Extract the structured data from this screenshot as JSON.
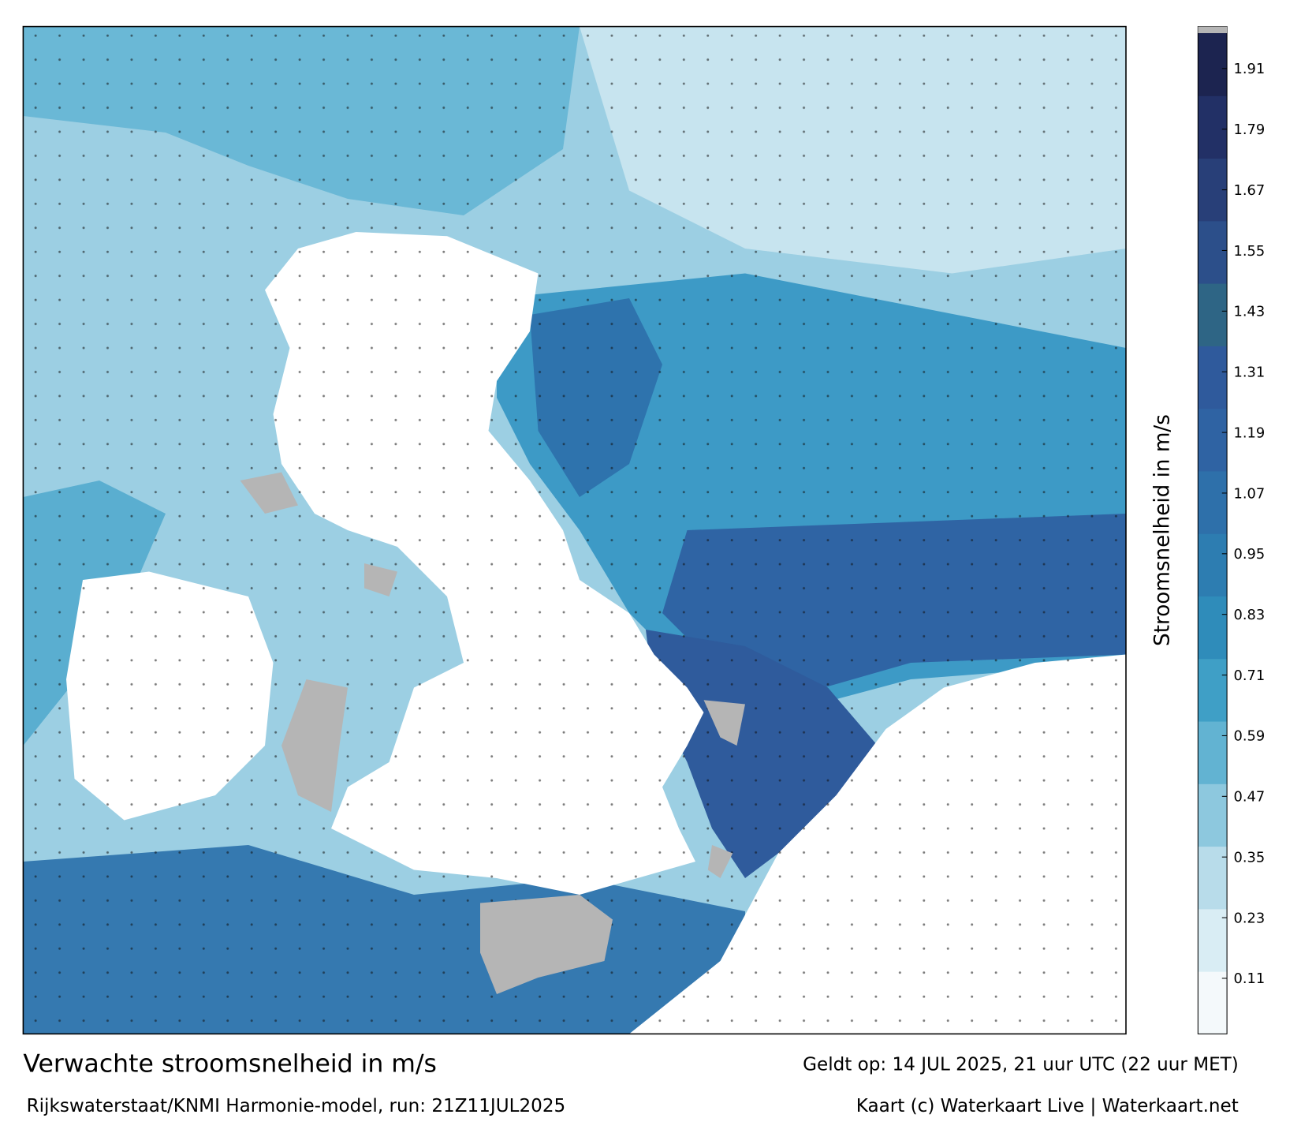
{
  "chart_data": {
    "type": "map",
    "title": "Verwachte stroomsnelheid in m/s",
    "subtitle": "Rijkswaterstaat/KNMI Harmonie-model, run: 21Z11JUL2025",
    "valid_time": "Geldt op: 14 JUL 2025, 21 uur UTC (22 uur MET)",
    "credit": "Kaart (c) Waterkaart Live | Waterkaart.net",
    "colorbar_label": "Stroomsnelheid in m/s",
    "clim": [
      0,
      1.98
    ],
    "cticks": [
      0.11,
      0.23,
      0.35,
      0.47,
      0.59,
      0.71,
      0.83,
      0.95,
      1.07,
      1.19,
      1.31,
      1.43,
      1.55,
      1.67,
      1.79,
      1.91
    ],
    "colormap": [
      "#f4f9fb",
      "#d9edf4",
      "#b8dcea",
      "#8dc8de",
      "#62b3d2",
      "#3f9fc6",
      "#2f8cba",
      "#2d7db1",
      "#2e70aa",
      "#2f63a3",
      "#2f5a9c",
      "#2e6585",
      "#2c4f8a",
      "#283f78",
      "#223066",
      "#1c2450"
    ]
  }
}
